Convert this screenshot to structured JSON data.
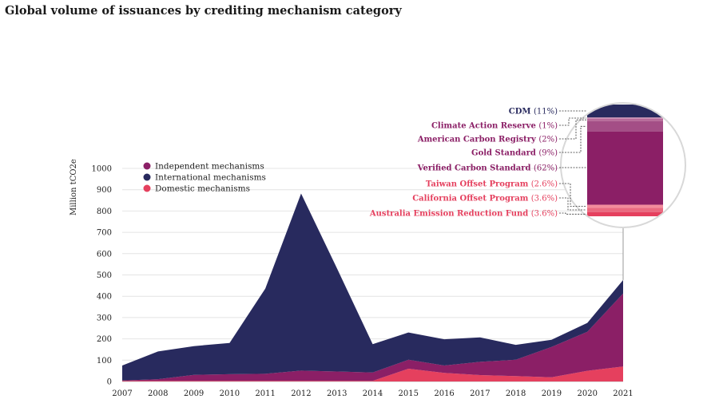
{
  "title": "Global volume of issuances by crediting mechanism category",
  "chart_data": {
    "type": "area",
    "stacked": true,
    "ylabel": "Million tCO2e",
    "xlabel": "",
    "x": [
      2007,
      2008,
      2009,
      2010,
      2011,
      2012,
      2013,
      2014,
      2015,
      2016,
      2017,
      2018,
      2019,
      2020,
      2021
    ],
    "ylim": [
      0,
      1000
    ],
    "yticks": [
      0,
      100,
      200,
      300,
      400,
      500,
      600,
      700,
      800,
      900,
      1000
    ],
    "legend_position": "top-left",
    "series": [
      {
        "name": "Domestic mechanisms",
        "color": "#e5405e",
        "values": [
          3,
          3,
          3,
          3,
          3,
          3,
          3,
          3,
          60,
          40,
          30,
          25,
          20,
          50,
          70
        ]
      },
      {
        "name": "Independent mechanisms",
        "color": "#8b1f66",
        "values": [
          2,
          8,
          28,
          31,
          33,
          48,
          44,
          39,
          42,
          35,
          62,
          77,
          142,
          183,
          343
        ]
      },
      {
        "name": "International mechanisms",
        "color": "#282a5e",
        "values": [
          70,
          130,
          135,
          147,
          400,
          831,
          485,
          133,
          128,
          123,
          115,
          70,
          34,
          42,
          63
        ]
      }
    ],
    "legend_order": [
      "Independent mechanisms",
      "International mechanisms",
      "Domestic mechanisms"
    ],
    "breakdown_2021": [
      {
        "name": "CDM",
        "pct_label": "(11%)",
        "color": "#282a5e",
        "share": 11
      },
      {
        "name": "Climate Action Reserve",
        "pct_label": "(1%)",
        "color": "#c68bb0",
        "share": 1
      },
      {
        "name": "American Carbon Registry",
        "pct_label": "(2%)",
        "color": "#b86a9a",
        "share": 2
      },
      {
        "name": "Gold Standard",
        "pct_label": "(9%)",
        "color": "#a44e86",
        "share": 9
      },
      {
        "name": "Verified Carbon Standard",
        "pct_label": "(62%)",
        "color": "#8b1f66",
        "share": 62
      },
      {
        "name": "Taiwan Offset Program",
        "pct_label": "(2.6%)",
        "color": "#f28c9c",
        "share": 2.6
      },
      {
        "name": "California Offset Program",
        "pct_label": "(3.6%)",
        "color": "#ea6a80",
        "share": 3.6
      },
      {
        "name": "Australia Emission Reduction Fund",
        "pct_label": "(3.6%)",
        "color": "#e5405e",
        "share": 3.6
      }
    ]
  }
}
